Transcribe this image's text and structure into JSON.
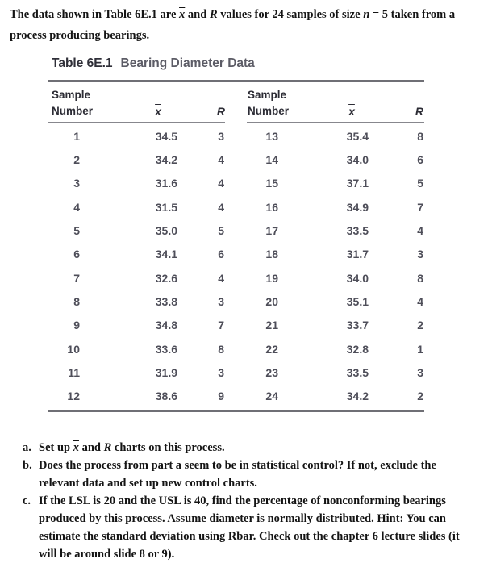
{
  "intro": {
    "l1a": "The data shown in Table 6E.1 are ",
    "xbar": "x",
    "l1b": " and ",
    "R": "R",
    "l1c": " values for 24 samples of size ",
    "n": "n",
    "l1d": " = 5 taken from a",
    "l2": "process producing bearings."
  },
  "table": {
    "title_label": "Table 6E.1",
    "title_text": "Bearing Diameter Data",
    "headers": {
      "sample_line1": "Sample",
      "sample_line2": "Number",
      "xbar": "x",
      "r": "R"
    },
    "left_rows": [
      {
        "sample": "1",
        "xbar": "34.5",
        "r": "3"
      },
      {
        "sample": "2",
        "xbar": "34.2",
        "r": "4"
      },
      {
        "sample": "3",
        "xbar": "31.6",
        "r": "4"
      },
      {
        "sample": "4",
        "xbar": "31.5",
        "r": "4"
      },
      {
        "sample": "5",
        "xbar": "35.0",
        "r": "5"
      },
      {
        "sample": "6",
        "xbar": "34.1",
        "r": "6"
      },
      {
        "sample": "7",
        "xbar": "32.6",
        "r": "4"
      },
      {
        "sample": "8",
        "xbar": "33.8",
        "r": "3"
      },
      {
        "sample": "9",
        "xbar": "34.8",
        "r": "7"
      },
      {
        "sample": "10",
        "xbar": "33.6",
        "r": "8"
      },
      {
        "sample": "11",
        "xbar": "31.9",
        "r": "3"
      },
      {
        "sample": "12",
        "xbar": "38.6",
        "r": "9"
      }
    ],
    "right_rows": [
      {
        "sample": "13",
        "xbar": "35.4",
        "r": "8"
      },
      {
        "sample": "14",
        "xbar": "34.0",
        "r": "6"
      },
      {
        "sample": "15",
        "xbar": "37.1",
        "r": "5"
      },
      {
        "sample": "16",
        "xbar": "34.9",
        "r": "7"
      },
      {
        "sample": "17",
        "xbar": "33.5",
        "r": "4"
      },
      {
        "sample": "18",
        "xbar": "31.7",
        "r": "3"
      },
      {
        "sample": "19",
        "xbar": "34.0",
        "r": "8"
      },
      {
        "sample": "20",
        "xbar": "35.1",
        "r": "4"
      },
      {
        "sample": "21",
        "xbar": "33.7",
        "r": "2"
      },
      {
        "sample": "22",
        "xbar": "32.8",
        "r": "1"
      },
      {
        "sample": "23",
        "xbar": "33.5",
        "r": "3"
      },
      {
        "sample": "24",
        "xbar": "34.2",
        "r": "2"
      }
    ]
  },
  "items": {
    "a": {
      "label": "a.",
      "s1": "Set up ",
      "xbar": "x",
      "s2": " and ",
      "R": "R",
      "s3": " charts on this process."
    },
    "b": {
      "label": "b.",
      "line1": "Does the process from part a seem to be in statistical control? If not, exclude the",
      "line2": "relevant data and set up new control charts."
    },
    "c": {
      "label": "c.",
      "line1": "If the LSL is 20 and the USL is 40, find the percentage of nonconforming bearings",
      "line2": "produced by this process. Assume diameter is normally distributed. Hint: You can",
      "line3": "estimate the standard deviation using Rbar. Check out the chapter 6 lecture slides (it",
      "line4": "will be around slide 8 or 9)."
    }
  }
}
